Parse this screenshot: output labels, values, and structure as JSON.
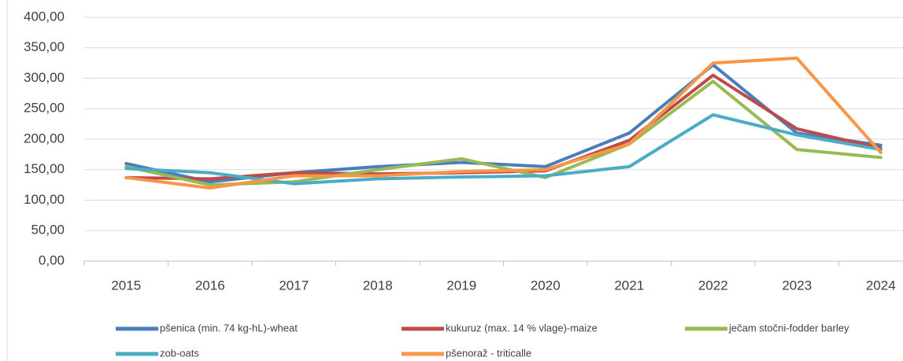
{
  "chart_data": {
    "type": "line",
    "categories": [
      "2015",
      "2016",
      "2017",
      "2018",
      "2019",
      "2020",
      "2021",
      "2022",
      "2023",
      "2024"
    ],
    "series": [
      {
        "name": "pšenica (min. 74 kg-hL)-wheat",
        "color": "#4a7ebb",
        "values": [
          160,
          130,
          145,
          155,
          162,
          155,
          210,
          322,
          210,
          190
        ]
      },
      {
        "name": "kukuruz (max. 14 % vlage)-maize",
        "color": "#be4b48",
        "values": [
          137,
          135,
          145,
          143,
          145,
          148,
          198,
          305,
          217,
          185
        ]
      },
      {
        "name": "ječam stočni-fodder barley",
        "color": "#98b954",
        "values": [
          155,
          125,
          130,
          150,
          168,
          137,
          192,
          295,
          183,
          170
        ]
      },
      {
        "name": "zob-oats",
        "color": "#4bacc6",
        "values": [
          152,
          145,
          127,
          135,
          138,
          140,
          155,
          240,
          207,
          183
        ]
      },
      {
        "name": "pšenoraž - triticalle",
        "color": "#f79646",
        "values": [
          137,
          120,
          140,
          140,
          147,
          150,
          192,
          325,
          333,
          178
        ]
      }
    ],
    "ylim": [
      0,
      400
    ],
    "yticks": [
      {
        "value": 0,
        "label": "0,00"
      },
      {
        "value": 50,
        "label": "50,00"
      },
      {
        "value": 100,
        "label": "100,00"
      },
      {
        "value": 150,
        "label": "150,00"
      },
      {
        "value": 200,
        "label": "200,00"
      },
      {
        "value": 250,
        "label": "250,00"
      },
      {
        "value": 300,
        "label": "300,00"
      },
      {
        "value": 350,
        "label": "350,00"
      },
      {
        "value": 400,
        "label": "400,00"
      }
    ],
    "grid": true
  }
}
